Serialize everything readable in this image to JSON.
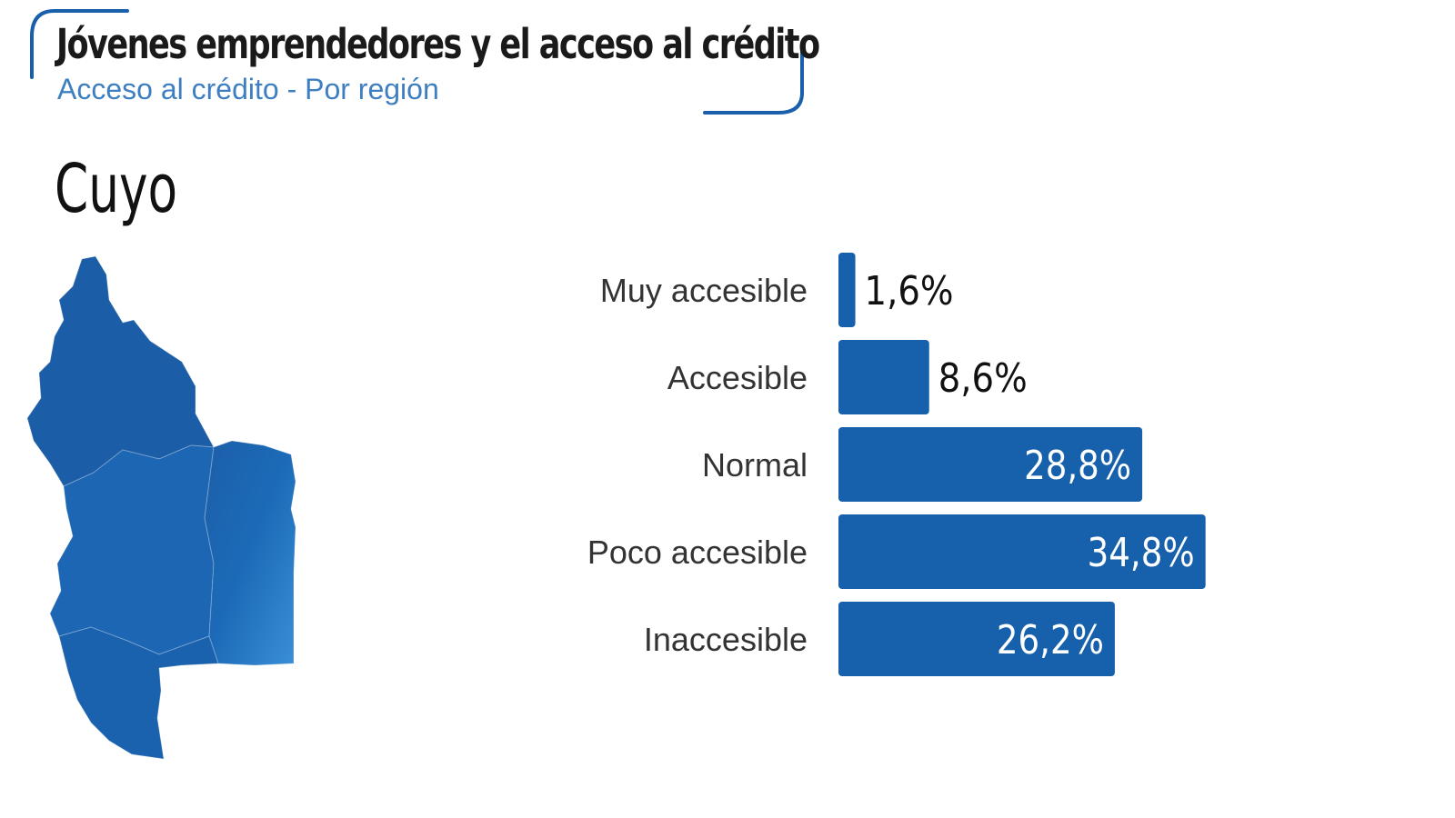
{
  "header": {
    "title": "Jóvenes emprendedores y el acceso al crédito",
    "subtitle": "Acceso al crédito - Por región"
  },
  "region": {
    "name": "Cuyo",
    "map_icon": "cuyo-region-map"
  },
  "colors": {
    "accent": "#1a5fab",
    "bar": "#1760ac",
    "subtitle": "#3e7fc1",
    "value_inside": "#ffffff",
    "value_outside": "#111111"
  },
  "chart_data": {
    "type": "bar",
    "orientation": "horizontal",
    "title": "",
    "xlabel": "",
    "ylabel": "",
    "xlim": [
      0,
      50
    ],
    "grid": false,
    "categories": [
      "Muy accesible",
      "Accesible",
      "Normal",
      "Poco accesible",
      "Inaccesible"
    ],
    "values": [
      1.6,
      8.6,
      28.8,
      34.8,
      26.2
    ],
    "value_labels": [
      "1,6%",
      "8,6%",
      "28,8%",
      "34,8%",
      "26,2%"
    ]
  }
}
